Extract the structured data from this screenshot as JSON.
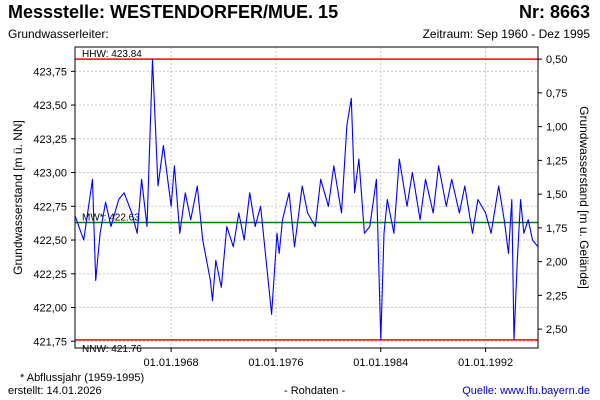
{
  "header": {
    "station": "Messstelle: WESTENDORFER/MUE. 15",
    "number": "Nr: 8663",
    "aquifer": "Grundwasserleiter:",
    "period": "Zeitraum: Sep 1960 - Dez 1995"
  },
  "footer": {
    "note": "* Abflussjahr (1959-1995)",
    "created": "erstellt:  14.01.2026",
    "raw": "- Rohdaten -",
    "source": "Quelle: www.lfu.bayern.de"
  },
  "colors": {
    "series": "#0000ff",
    "extreme_lines": "#ff0000",
    "mean_line": "#008000",
    "grid": "#c8c8c8"
  },
  "chart_data": {
    "type": "line",
    "ylabel": "Grundwasserstand [m ü. NN]",
    "y2label": "Grundwasserstand [m u. Gelände]",
    "ylim": [
      421.7,
      423.93
    ],
    "xlim": [
      "1960-09-01",
      "1995-12-31"
    ],
    "yticks": [
      "421,75",
      "422,00",
      "422,25",
      "422,50",
      "422,75",
      "423,00",
      "423,25",
      "423,50",
      "423,75"
    ],
    "yticks_values": [
      421.75,
      422.0,
      422.25,
      422.5,
      422.75,
      423.0,
      423.25,
      423.5,
      423.75
    ],
    "y2ticks": [
      "0,50",
      "0,75",
      "1,00",
      "1,25",
      "1,50",
      "1,75",
      "2,00",
      "2,25",
      "2,50"
    ],
    "y2ticks_values": [
      423.84,
      423.59,
      423.34,
      423.09,
      422.84,
      422.59,
      422.34,
      422.09,
      421.84
    ],
    "xticks": [
      "01.01.1968",
      "01.01.1976",
      "01.01.1984",
      "01.01.1992"
    ],
    "xticks_values": [
      "1968-01-01",
      "1976-01-01",
      "1984-01-01",
      "1992-01-01"
    ],
    "grid": true,
    "reference_lines": [
      {
        "label": "HHW: 423.84",
        "value": 423.84,
        "color": "red"
      },
      {
        "label": "MW*: 422.63",
        "value": 422.63,
        "color": "green"
      },
      {
        "label": "NNW: 421.76",
        "value": 421.76,
        "color": "red"
      }
    ],
    "series": [
      {
        "x": [
          "1960-09-01",
          "1961-05-01",
          "1962-01-01",
          "1962-04-01",
          "1962-08-01",
          "1963-01-01",
          "1963-06-01",
          "1964-01-01",
          "1964-06-01",
          "1965-01-01",
          "1965-06-01",
          "1965-10-01",
          "1966-03-01",
          "1966-08-01",
          "1967-01-01",
          "1967-06-01",
          "1968-01-01",
          "1968-04-01",
          "1968-09-01",
          "1969-02-01",
          "1969-07-01",
          "1970-01-01",
          "1970-06-01",
          "1971-01-01",
          "1971-03-01",
          "1971-06-01",
          "1971-11-01",
          "1972-04-01",
          "1972-10-01",
          "1973-03-01",
          "1973-08-01",
          "1974-01-01",
          "1974-06-01",
          "1974-11-01",
          "1975-04-01",
          "1975-09-01",
          "1976-02-01",
          "1976-04-01",
          "1976-07-01",
          "1977-01-01",
          "1977-06-01",
          "1978-01-01",
          "1978-06-01",
          "1979-01-01",
          "1979-06-01",
          "1980-01-01",
          "1980-06-01",
          "1981-01-01",
          "1981-06-01",
          "1981-10-01",
          "1982-01-01",
          "1982-05-01",
          "1982-10-01",
          "1983-03-01",
          "1983-09-01",
          "1984-01-01",
          "1984-04-01",
          "1984-07-01",
          "1985-01-01",
          "1985-06-01",
          "1986-01-01",
          "1986-06-01",
          "1987-01-01",
          "1987-06-01",
          "1988-01-01",
          "1988-06-01",
          "1989-01-01",
          "1989-06-01",
          "1990-01-01",
          "1990-06-01",
          "1991-01-01",
          "1991-06-01",
          "1992-01-01",
          "1992-06-01",
          "1993-01-01",
          "1993-06-01",
          "1993-10-01",
          "1994-01-01",
          "1994-03-01",
          "1994-06-01",
          "1994-09-01",
          "1994-12-01",
          "1995-04-01",
          "1995-08-01",
          "1995-12-31"
        ],
        "y": [
          422.68,
          422.5,
          422.95,
          422.2,
          422.55,
          422.78,
          422.6,
          422.8,
          422.85,
          422.7,
          422.55,
          422.95,
          422.6,
          423.84,
          422.9,
          423.2,
          422.75,
          423.05,
          422.55,
          422.85,
          422.65,
          422.9,
          422.5,
          422.2,
          422.05,
          422.35,
          422.15,
          422.6,
          422.45,
          422.7,
          422.5,
          422.85,
          422.6,
          422.75,
          422.35,
          421.95,
          422.55,
          422.4,
          422.65,
          422.85,
          422.45,
          422.9,
          422.7,
          422.6,
          422.95,
          422.75,
          423.05,
          422.7,
          423.35,
          423.55,
          422.85,
          423.1,
          422.55,
          422.6,
          422.95,
          421.76,
          422.55,
          422.8,
          422.55,
          423.1,
          422.75,
          423.0,
          422.65,
          422.95,
          422.7,
          423.05,
          422.75,
          422.95,
          422.7,
          422.9,
          422.55,
          422.8,
          422.7,
          422.55,
          422.9,
          422.65,
          422.4,
          422.8,
          421.76,
          422.35,
          422.8,
          422.55,
          422.65,
          422.5,
          422.45
        ]
      }
    ]
  }
}
